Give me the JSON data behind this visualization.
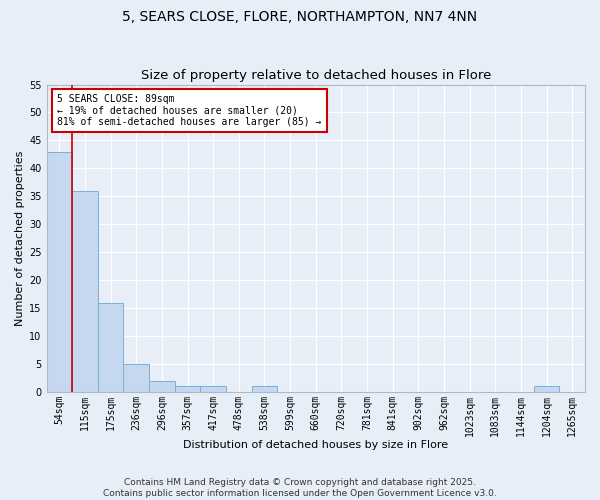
{
  "title1": "5, SEARS CLOSE, FLORE, NORTHAMPTON, NN7 4NN",
  "title2": "Size of property relative to detached houses in Flore",
  "xlabel": "Distribution of detached houses by size in Flore",
  "ylabel": "Number of detached properties",
  "categories": [
    "54sqm",
    "115sqm",
    "175sqm",
    "236sqm",
    "296sqm",
    "357sqm",
    "417sqm",
    "478sqm",
    "538sqm",
    "599sqm",
    "660sqm",
    "720sqm",
    "781sqm",
    "841sqm",
    "902sqm",
    "962sqm",
    "1023sqm",
    "1083sqm",
    "1144sqm",
    "1204sqm",
    "1265sqm"
  ],
  "values": [
    43,
    36,
    16,
    5,
    2,
    1,
    1,
    0,
    1,
    0,
    0,
    0,
    0,
    0,
    0,
    0,
    0,
    0,
    0,
    1,
    0
  ],
  "bar_color": "#c5d8f0",
  "bar_edge_color": "#7aafd4",
  "background_color": "#e8eef8",
  "grid_color": "#d0d8e8",
  "red_line_x": 0.5,
  "annotation_title": "5 SEARS CLOSE: 89sqm",
  "annotation_line1": "← 19% of detached houses are smaller (20)",
  "annotation_line2": "81% of semi-detached houses are larger (85) →",
  "annotation_box_color": "#ffffff",
  "annotation_box_edge": "#cc0000",
  "red_line_color": "#cc0000",
  "ylim_max": 55,
  "yticks": [
    0,
    5,
    10,
    15,
    20,
    25,
    30,
    35,
    40,
    45,
    50,
    55
  ],
  "footer": "Contains HM Land Registry data © Crown copyright and database right 2025.\nContains public sector information licensed under the Open Government Licence v3.0.",
  "title_fontsize": 10,
  "axis_label_fontsize": 8,
  "tick_fontsize": 7,
  "annotation_fontsize": 7,
  "footer_fontsize": 6.5
}
